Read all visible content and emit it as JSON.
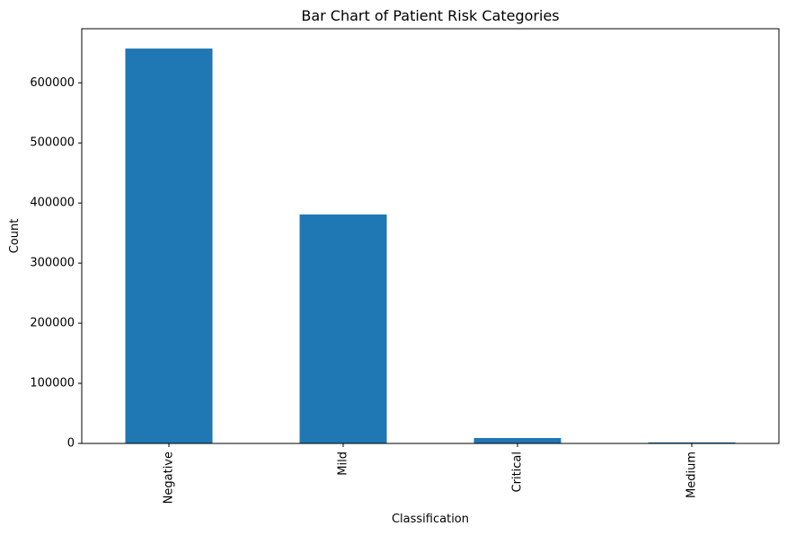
{
  "chart_data": {
    "type": "bar",
    "title": "Bar Chart of Patient Risk Categories",
    "xlabel": "Classification",
    "ylabel": "Count",
    "categories": [
      "Negative",
      "Mild",
      "Critical",
      "Medium"
    ],
    "values": [
      657000,
      381000,
      9000,
      1800
    ],
    "ylim": [
      0,
      690000
    ],
    "yticks": [
      0,
      100000,
      200000,
      300000,
      400000,
      500000,
      600000
    ],
    "ytick_labels": [
      "0",
      "100000",
      "200000",
      "300000",
      "400000",
      "500000",
      "600000"
    ],
    "bar_color": "#1f77b4",
    "grid": false,
    "legend": "none"
  }
}
